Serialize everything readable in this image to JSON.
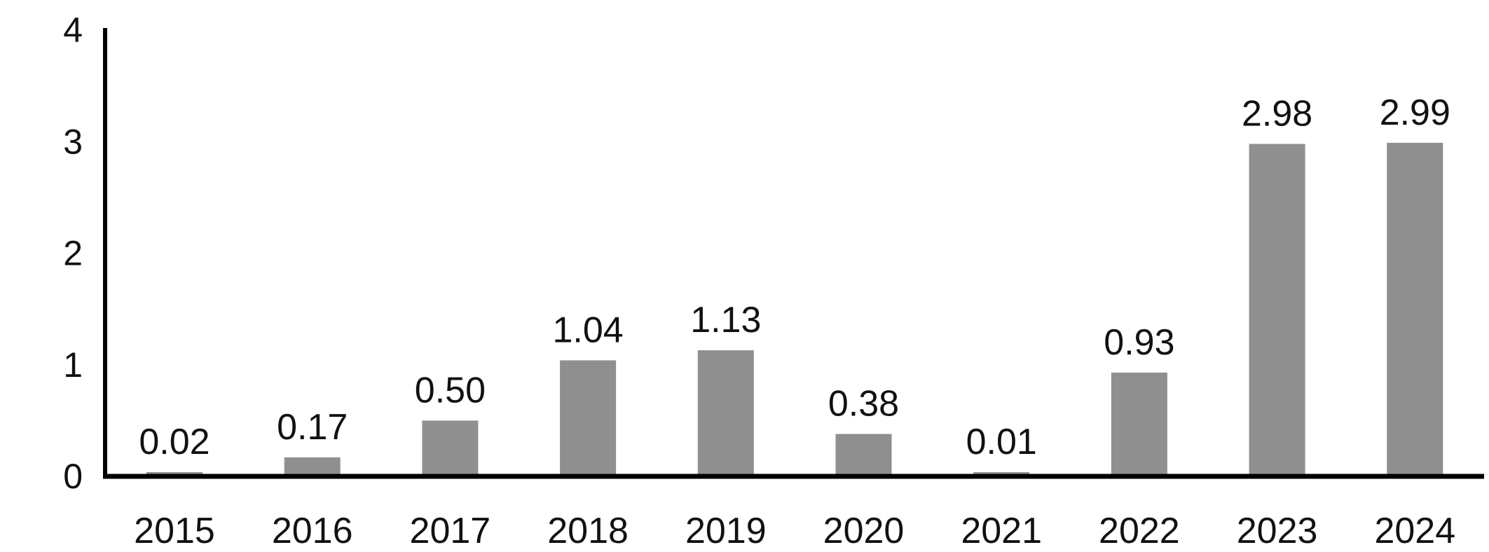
{
  "chart_data": {
    "type": "bar",
    "title": "",
    "xlabel": "",
    "ylabel": "",
    "categories": [
      "2015",
      "2016",
      "2017",
      "2018",
      "2019",
      "2020",
      "2021",
      "2022",
      "2023",
      "2024"
    ],
    "values": [
      0.02,
      0.17,
      0.5,
      1.04,
      1.13,
      0.38,
      0.01,
      0.93,
      2.98,
      2.99
    ],
    "value_labels": [
      "0.02",
      "0.17",
      "0.50",
      "1.04",
      "1.13",
      "0.38",
      "0.01",
      "0.93",
      "2.98",
      "2.99"
    ],
    "ylim": [
      0,
      4
    ],
    "yticks": [
      "0",
      "1",
      "2",
      "3",
      "4"
    ],
    "grid": false,
    "legend": "none",
    "bar_color": "#8f8f8f",
    "axis_color": "#000000"
  }
}
